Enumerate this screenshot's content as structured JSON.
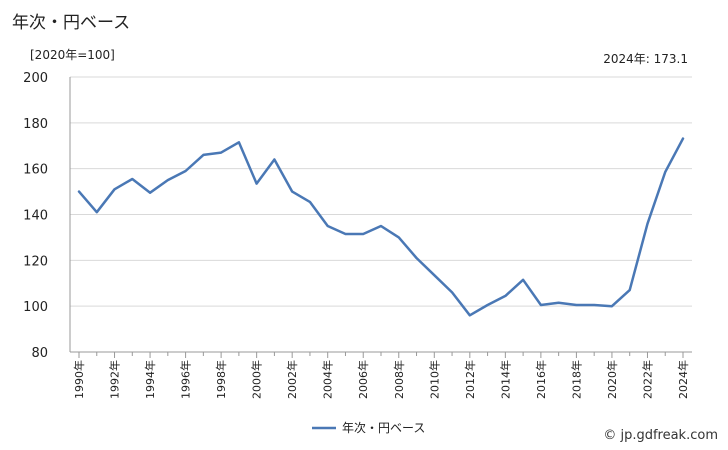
{
  "header": {
    "title": "年次・円ベース",
    "unit": "[2020年=100]",
    "latest": "2024年: 173.1"
  },
  "credit": "© jp.gdfreak.com",
  "colors": {
    "line": "#4a78b5",
    "grid": "#d9d9d9",
    "axis": "#999999"
  },
  "chart_data": {
    "type": "line",
    "title": "年次・円ベース",
    "xlabel": "",
    "ylabel": "",
    "ylim": [
      80,
      200
    ],
    "yticks": [
      80,
      100,
      120,
      140,
      160,
      180,
      200
    ],
    "x": [
      1990,
      1991,
      1992,
      1993,
      1994,
      1995,
      1996,
      1997,
      1998,
      1999,
      2000,
      2001,
      2002,
      2003,
      2004,
      2005,
      2006,
      2007,
      2008,
      2009,
      2010,
      2011,
      2012,
      2013,
      2014,
      2015,
      2016,
      2017,
      2018,
      2019,
      2020,
      2021,
      2022,
      2023,
      2024
    ],
    "xtick_labels": [
      "1990年",
      "1992年",
      "1994年",
      "1996年",
      "1998年",
      "2000年",
      "2002年",
      "2004年",
      "2006年",
      "2008年",
      "2010年",
      "2012年",
      "2014年",
      "2016年",
      "2018年",
      "2020年",
      "2022年",
      "2024年"
    ],
    "series": [
      {
        "name": "年次・円ベース",
        "values": [
          150,
          141,
          151,
          155.5,
          149.5,
          155,
          159,
          166,
          167,
          171.5,
          153.5,
          164,
          150,
          145.5,
          135,
          131.5,
          131.5,
          135,
          130,
          121,
          113.5,
          106,
          96,
          100.5,
          104.5,
          111.5,
          100.5,
          101.5,
          100.5,
          100.5,
          100,
          107,
          136,
          158.5,
          173.1
        ]
      }
    ],
    "grid": "horizontal",
    "legend": "bottom-center"
  }
}
